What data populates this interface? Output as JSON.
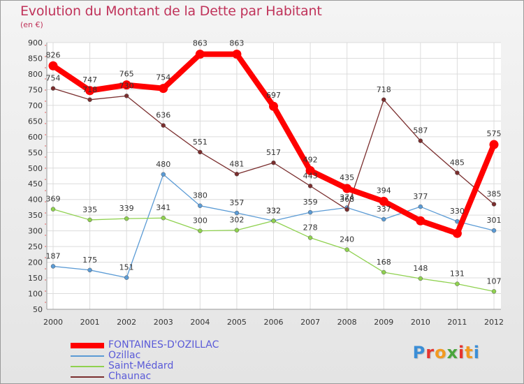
{
  "title": "Evolution du Montant de la Dette par Habitant",
  "unit_label": "(en €)",
  "logo": {
    "text": "Proxiti",
    "letters": [
      "P",
      "r",
      "o",
      "x",
      "i",
      "t",
      "i"
    ],
    "letter_colors": [
      "#3b8ed6",
      "#e6342f",
      "#f29a21",
      "#4aa53d",
      "#e6342f",
      "#f29a21",
      "#3b8ed6"
    ]
  },
  "chart_data": {
    "type": "line",
    "x": [
      "2000",
      "2001",
      "2002",
      "2003",
      "2004",
      "2005",
      "2006",
      "2007",
      "2008",
      "2009",
      "2010",
      "2011",
      "2012"
    ],
    "ylim": [
      50,
      900
    ],
    "yticks": [
      50,
      100,
      150,
      200,
      250,
      300,
      350,
      400,
      450,
      500,
      550,
      600,
      650,
      700,
      750,
      800,
      850,
      900
    ],
    "grid": true,
    "legend_position": "bottom-left",
    "series": [
      {
        "name": "FONTAINES-D'OZILLAC",
        "color": "#ff0000",
        "emphasis": "thick",
        "values": [
          826,
          747,
          765,
          754,
          863,
          863,
          697,
          492,
          435,
          394,
          332,
          292,
          575
        ],
        "labels": [
          "826",
          "747",
          "765",
          "754",
          "863",
          "863",
          "697",
          "492",
          "435",
          "394",
          "",
          "",
          "575"
        ]
      },
      {
        "name": "Ozillac",
        "color": "#5b9bd5",
        "values": [
          187,
          175,
          151,
          480,
          380,
          357,
          332,
          359,
          374,
          337,
          377,
          330,
          301
        ],
        "labels": [
          "187",
          "175",
          "151",
          "480",
          "380",
          "357",
          "332",
          "359",
          "374",
          "337",
          "377",
          "330",
          "301"
        ]
      },
      {
        "name": "Saint-Médard",
        "color": "#8fd14f",
        "values": [
          369,
          335,
          339,
          341,
          300,
          302,
          332,
          278,
          240,
          168,
          148,
          131,
          107
        ],
        "labels": [
          "369",
          "335",
          "339",
          "341",
          "300",
          "302",
          "332",
          "278",
          "240",
          "168",
          "148",
          "131",
          "107"
        ]
      },
      {
        "name": "Chaunac",
        "color": "#7a2e2e",
        "values": [
          754,
          718,
          730,
          636,
          551,
          481,
          517,
          443,
          368,
          718,
          587,
          485,
          385
        ],
        "labels": [
          "754",
          "718",
          "730",
          "636",
          "551",
          "481",
          "517",
          "443",
          "368",
          "718",
          "587",
          "485",
          "385"
        ]
      }
    ]
  }
}
